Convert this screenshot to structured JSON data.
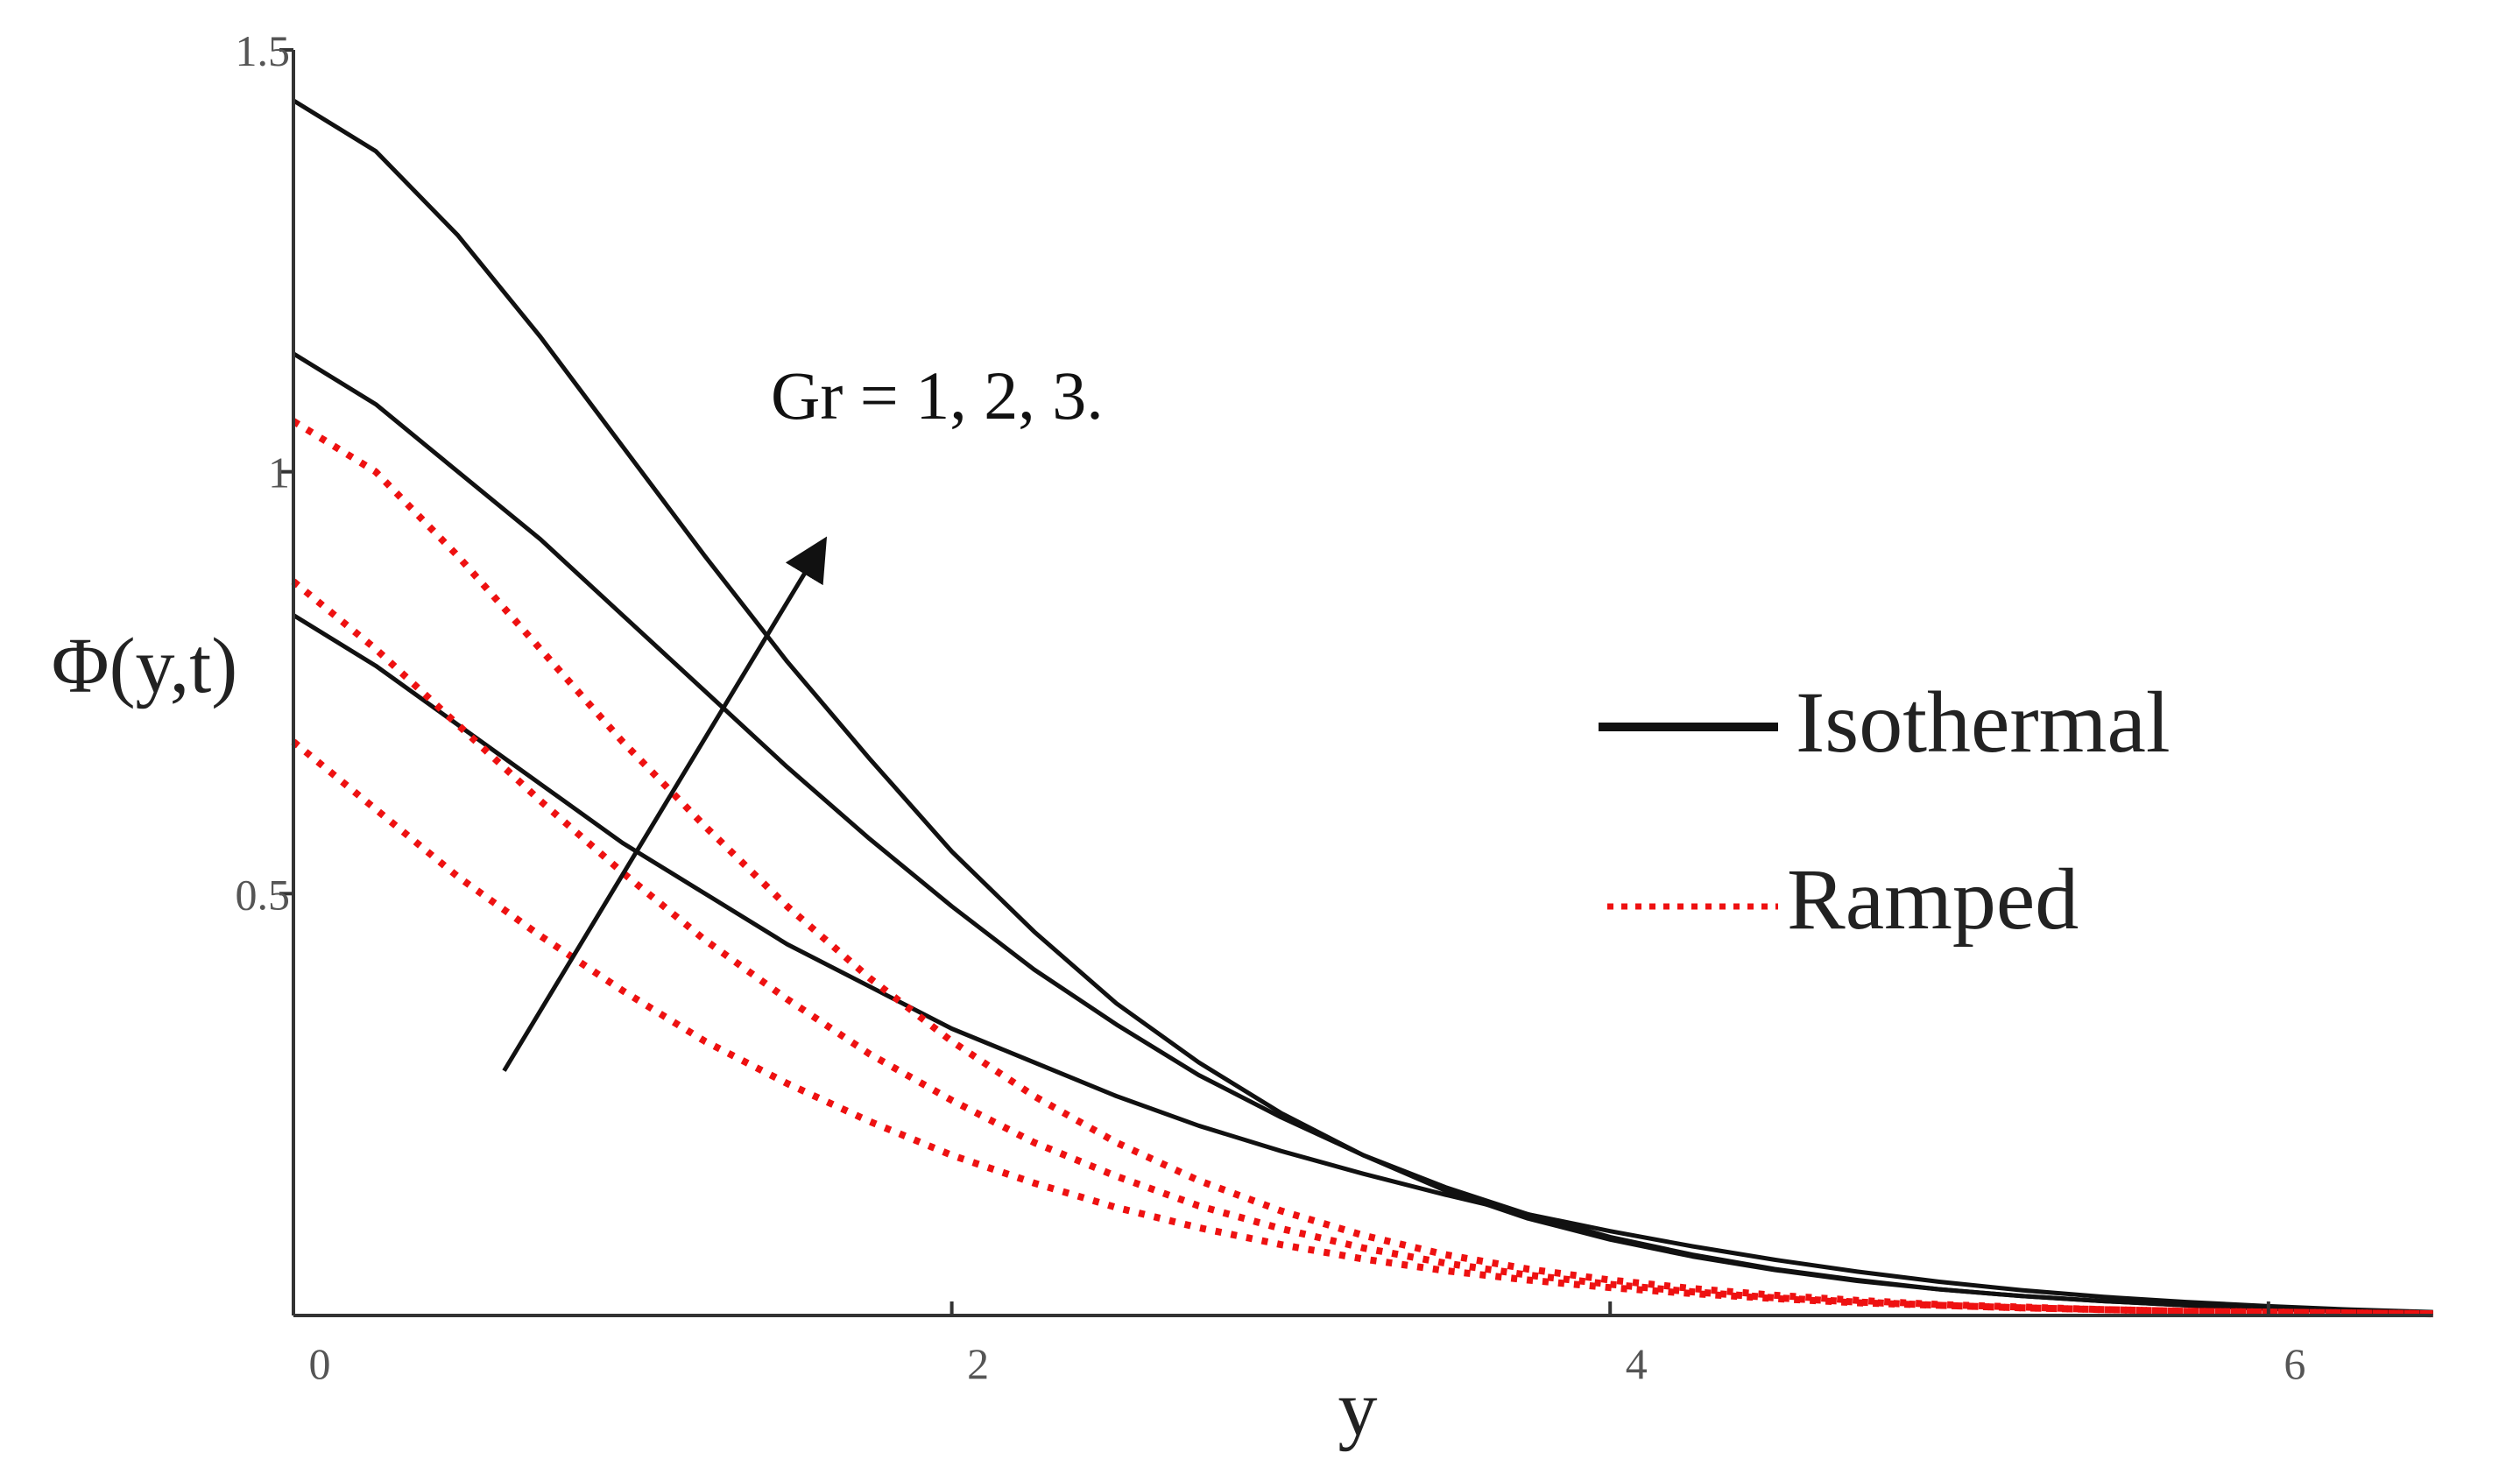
{
  "chart_data": {
    "type": "line",
    "title": "",
    "xlabel": "y",
    "ylabel": "Φ(y,t)",
    "xlim": [
      0,
      6.5
    ],
    "ylim": [
      0,
      1.5
    ],
    "x_ticks": [
      "0",
      "2",
      "4",
      "6"
    ],
    "x_tick_values": [
      0,
      2,
      4,
      6
    ],
    "y_ticks": [
      "0.5",
      "1",
      "1.5"
    ],
    "y_tick_values": [
      0.5,
      1,
      1.5
    ],
    "grid": false,
    "legend_position": "right",
    "legend": [
      {
        "label": "Isothermal",
        "style": "solid",
        "color": "#111111"
      },
      {
        "label": "Ramped",
        "style": "dotted",
        "color": "#ee1111"
      }
    ],
    "annotation": {
      "text": "Gr = 1, 2, 3.",
      "arrow_from": [
        0.64,
        0.29
      ],
      "arrow_to": [
        1.6,
        0.91
      ]
    },
    "x": [
      0,
      0.25,
      0.5,
      0.75,
      1,
      1.25,
      1.5,
      1.75,
      2,
      2.25,
      2.5,
      2.75,
      3,
      3.25,
      3.5,
      3.75,
      4,
      4.25,
      4.5,
      4.75,
      5,
      5.25,
      5.5,
      5.75,
      6,
      6.25,
      6.5
    ],
    "series": [
      {
        "group": "Isothermal",
        "style": "solid",
        "color": "#111111",
        "values": [
          0.83,
          0.77,
          0.7,
          0.63,
          0.56,
          0.5,
          0.44,
          0.39,
          0.34,
          0.3,
          0.26,
          0.225,
          0.195,
          0.168,
          0.143,
          0.12,
          0.1,
          0.082,
          0.066,
          0.052,
          0.04,
          0.03,
          0.022,
          0.016,
          0.011,
          0.007,
          0.004
        ]
      },
      {
        "group": "Isothermal",
        "style": "solid",
        "color": "#111111",
        "values": [
          1.14,
          1.08,
          1.0,
          0.92,
          0.83,
          0.74,
          0.65,
          0.565,
          0.485,
          0.41,
          0.345,
          0.285,
          0.235,
          0.19,
          0.152,
          0.12,
          0.093,
          0.072,
          0.055,
          0.042,
          0.031,
          0.023,
          0.017,
          0.012,
          0.008,
          0.005,
          0.003
        ]
      },
      {
        "group": "Isothermal",
        "style": "solid",
        "color": "#111111",
        "values": [
          1.44,
          1.38,
          1.28,
          1.16,
          1.03,
          0.9,
          0.775,
          0.66,
          0.55,
          0.455,
          0.37,
          0.3,
          0.24,
          0.19,
          0.148,
          0.115,
          0.09,
          0.07,
          0.054,
          0.041,
          0.031,
          0.023,
          0.017,
          0.012,
          0.008,
          0.005,
          0.003
        ]
      },
      {
        "group": "Ramped",
        "style": "dotted",
        "color": "#ee1111",
        "values": [
          0.68,
          0.6,
          0.52,
          0.45,
          0.385,
          0.325,
          0.275,
          0.23,
          0.19,
          0.157,
          0.128,
          0.104,
          0.084,
          0.067,
          0.053,
          0.042,
          0.033,
          0.026,
          0.02,
          0.015,
          0.012,
          0.009,
          0.007,
          0.005,
          0.004,
          0.003,
          0.002
        ]
      },
      {
        "group": "Ramped",
        "style": "dotted",
        "color": "#ee1111",
        "values": [
          0.87,
          0.79,
          0.7,
          0.61,
          0.525,
          0.445,
          0.375,
          0.31,
          0.255,
          0.205,
          0.165,
          0.13,
          0.103,
          0.08,
          0.062,
          0.048,
          0.037,
          0.028,
          0.021,
          0.016,
          0.012,
          0.009,
          0.007,
          0.005,
          0.004,
          0.003,
          0.002
        ]
      },
      {
        "group": "Ramped",
        "style": "dotted",
        "color": "#ee1111",
        "values": [
          1.06,
          1.0,
          0.9,
          0.79,
          0.68,
          0.58,
          0.485,
          0.4,
          0.325,
          0.26,
          0.205,
          0.16,
          0.124,
          0.095,
          0.072,
          0.055,
          0.042,
          0.032,
          0.024,
          0.018,
          0.013,
          0.01,
          0.007,
          0.005,
          0.004,
          0.003,
          0.002
        ]
      }
    ]
  }
}
